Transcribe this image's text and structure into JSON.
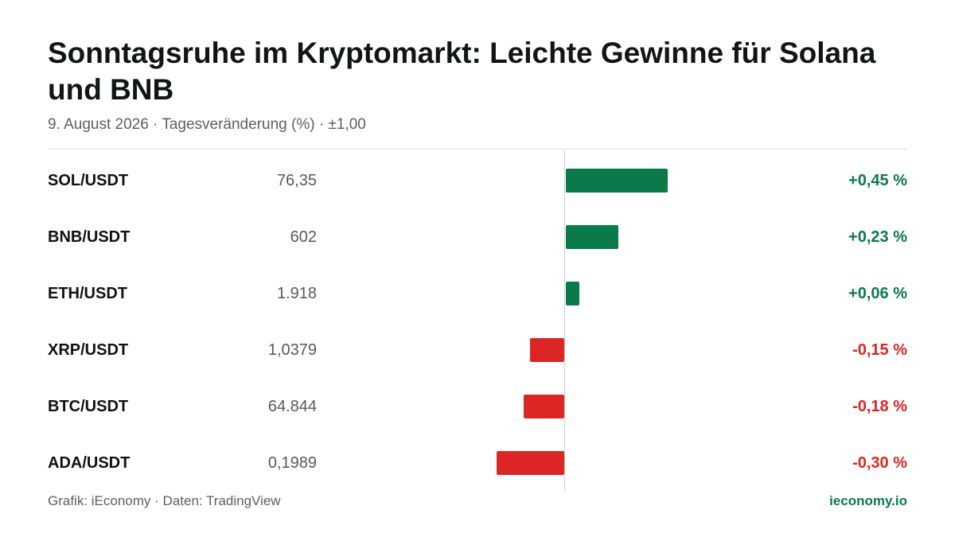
{
  "header": {
    "title": "Sonntagsruhe im Kryptomarkt: Leichte Gewinne für Solana und BNB",
    "subtitle": "9. August 2026 · Tagesveränderung (%) · ±1,00"
  },
  "footer": {
    "source": "Grafik: iEconomy · Daten: TradingView",
    "brand": "ieconomy.io"
  },
  "colors": {
    "positive": "#0b7a4b",
    "negative": "#dc2626",
    "brand": "#0b7a4b"
  },
  "chart_data": {
    "type": "bar",
    "orientation": "horizontal",
    "title": "Sonntagsruhe im Kryptomarkt: Leichte Gewinne für Solana und BNB",
    "subtitle": "9. August 2026 · Tagesveränderung (%) · ±1,00",
    "xlim": [
      -1.0,
      1.0
    ],
    "grid": false,
    "categories": [
      "SOL/USDT",
      "BNB/USDT",
      "ETH/USDT",
      "XRP/USDT",
      "BTC/USDT",
      "ADA/USDT"
    ],
    "prices": [
      "76,35",
      "602",
      "1.918",
      "1,0379",
      "64.844",
      "0,1989"
    ],
    "values": [
      0.45,
      0.23,
      0.06,
      -0.15,
      -0.18,
      -0.3
    ],
    "value_labels": [
      "+0,45 %",
      "+0,23 %",
      "+0,06 %",
      "-0,15 %",
      "-0,18 %",
      "-0,30 %"
    ]
  }
}
